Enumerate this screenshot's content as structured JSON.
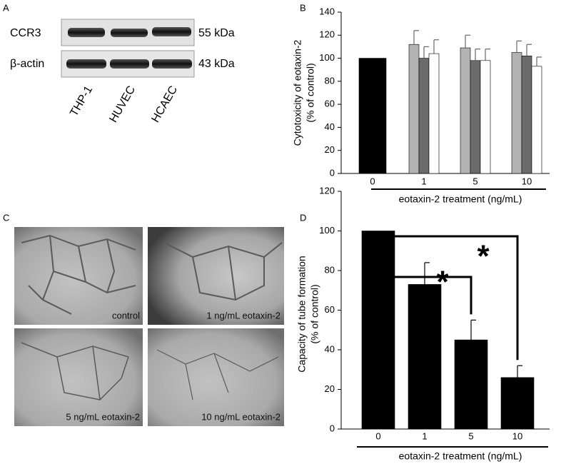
{
  "panel_labels": [
    "A",
    "B",
    "C",
    "D"
  ],
  "blot": {
    "rows": [
      {
        "label": "CCR3",
        "weight": "55 kDa"
      },
      {
        "label": "β-actin",
        "weight": "43 kDa"
      }
    ],
    "lanes": [
      "THP-1",
      "HUVEC",
      "HCAEC"
    ]
  },
  "micrographs": {
    "captions": [
      "control",
      "1 ng/mL eotaxin-2",
      "5 ng/mL eotaxin-2",
      "10 ng/mL eotaxin-2"
    ]
  },
  "chart_data": [
    {
      "type": "bar",
      "ylabel": [
        "Cytotoxicity of eotaxin-2",
        "(% of control)"
      ],
      "xlabel": "eotaxin-2 treatment (ng/mL)",
      "categories": [
        "0",
        "1",
        "5",
        "10"
      ],
      "series": [
        {
          "color": "#000000",
          "values": [
            100,
            null,
            null,
            null
          ],
          "errors": [
            null,
            null,
            null,
            null
          ]
        },
        {
          "color": "#b3b3b3",
          "values": [
            null,
            112,
            109,
            105
          ],
          "errors": [
            null,
            12,
            11,
            10
          ]
        },
        {
          "color": "#6b6b6b",
          "values": [
            null,
            100,
            98,
            102
          ],
          "errors": [
            null,
            10,
            10,
            10
          ]
        },
        {
          "color": "#ffffff",
          "values": [
            null,
            104,
            98,
            93
          ],
          "errors": [
            null,
            12,
            10,
            8
          ]
        }
      ],
      "ylim": [
        0,
        140
      ],
      "yticks": [
        0,
        20,
        40,
        60,
        80,
        100,
        120,
        140
      ]
    },
    {
      "type": "bar",
      "ylabel": [
        "Capacity of tube formation",
        "(% of control)"
      ],
      "xlabel": "eotaxin-2 treatment (ng/mL)",
      "categories": [
        "0",
        "1",
        "5",
        "10"
      ],
      "values": [
        100,
        73,
        45,
        26
      ],
      "errors": [
        null,
        11,
        10,
        6
      ],
      "color": "#000000",
      "ylim": [
        0,
        120
      ],
      "yticks": [
        0,
        20,
        40,
        60,
        80,
        100,
        120
      ],
      "annotations": [
        "*",
        "*"
      ]
    }
  ]
}
